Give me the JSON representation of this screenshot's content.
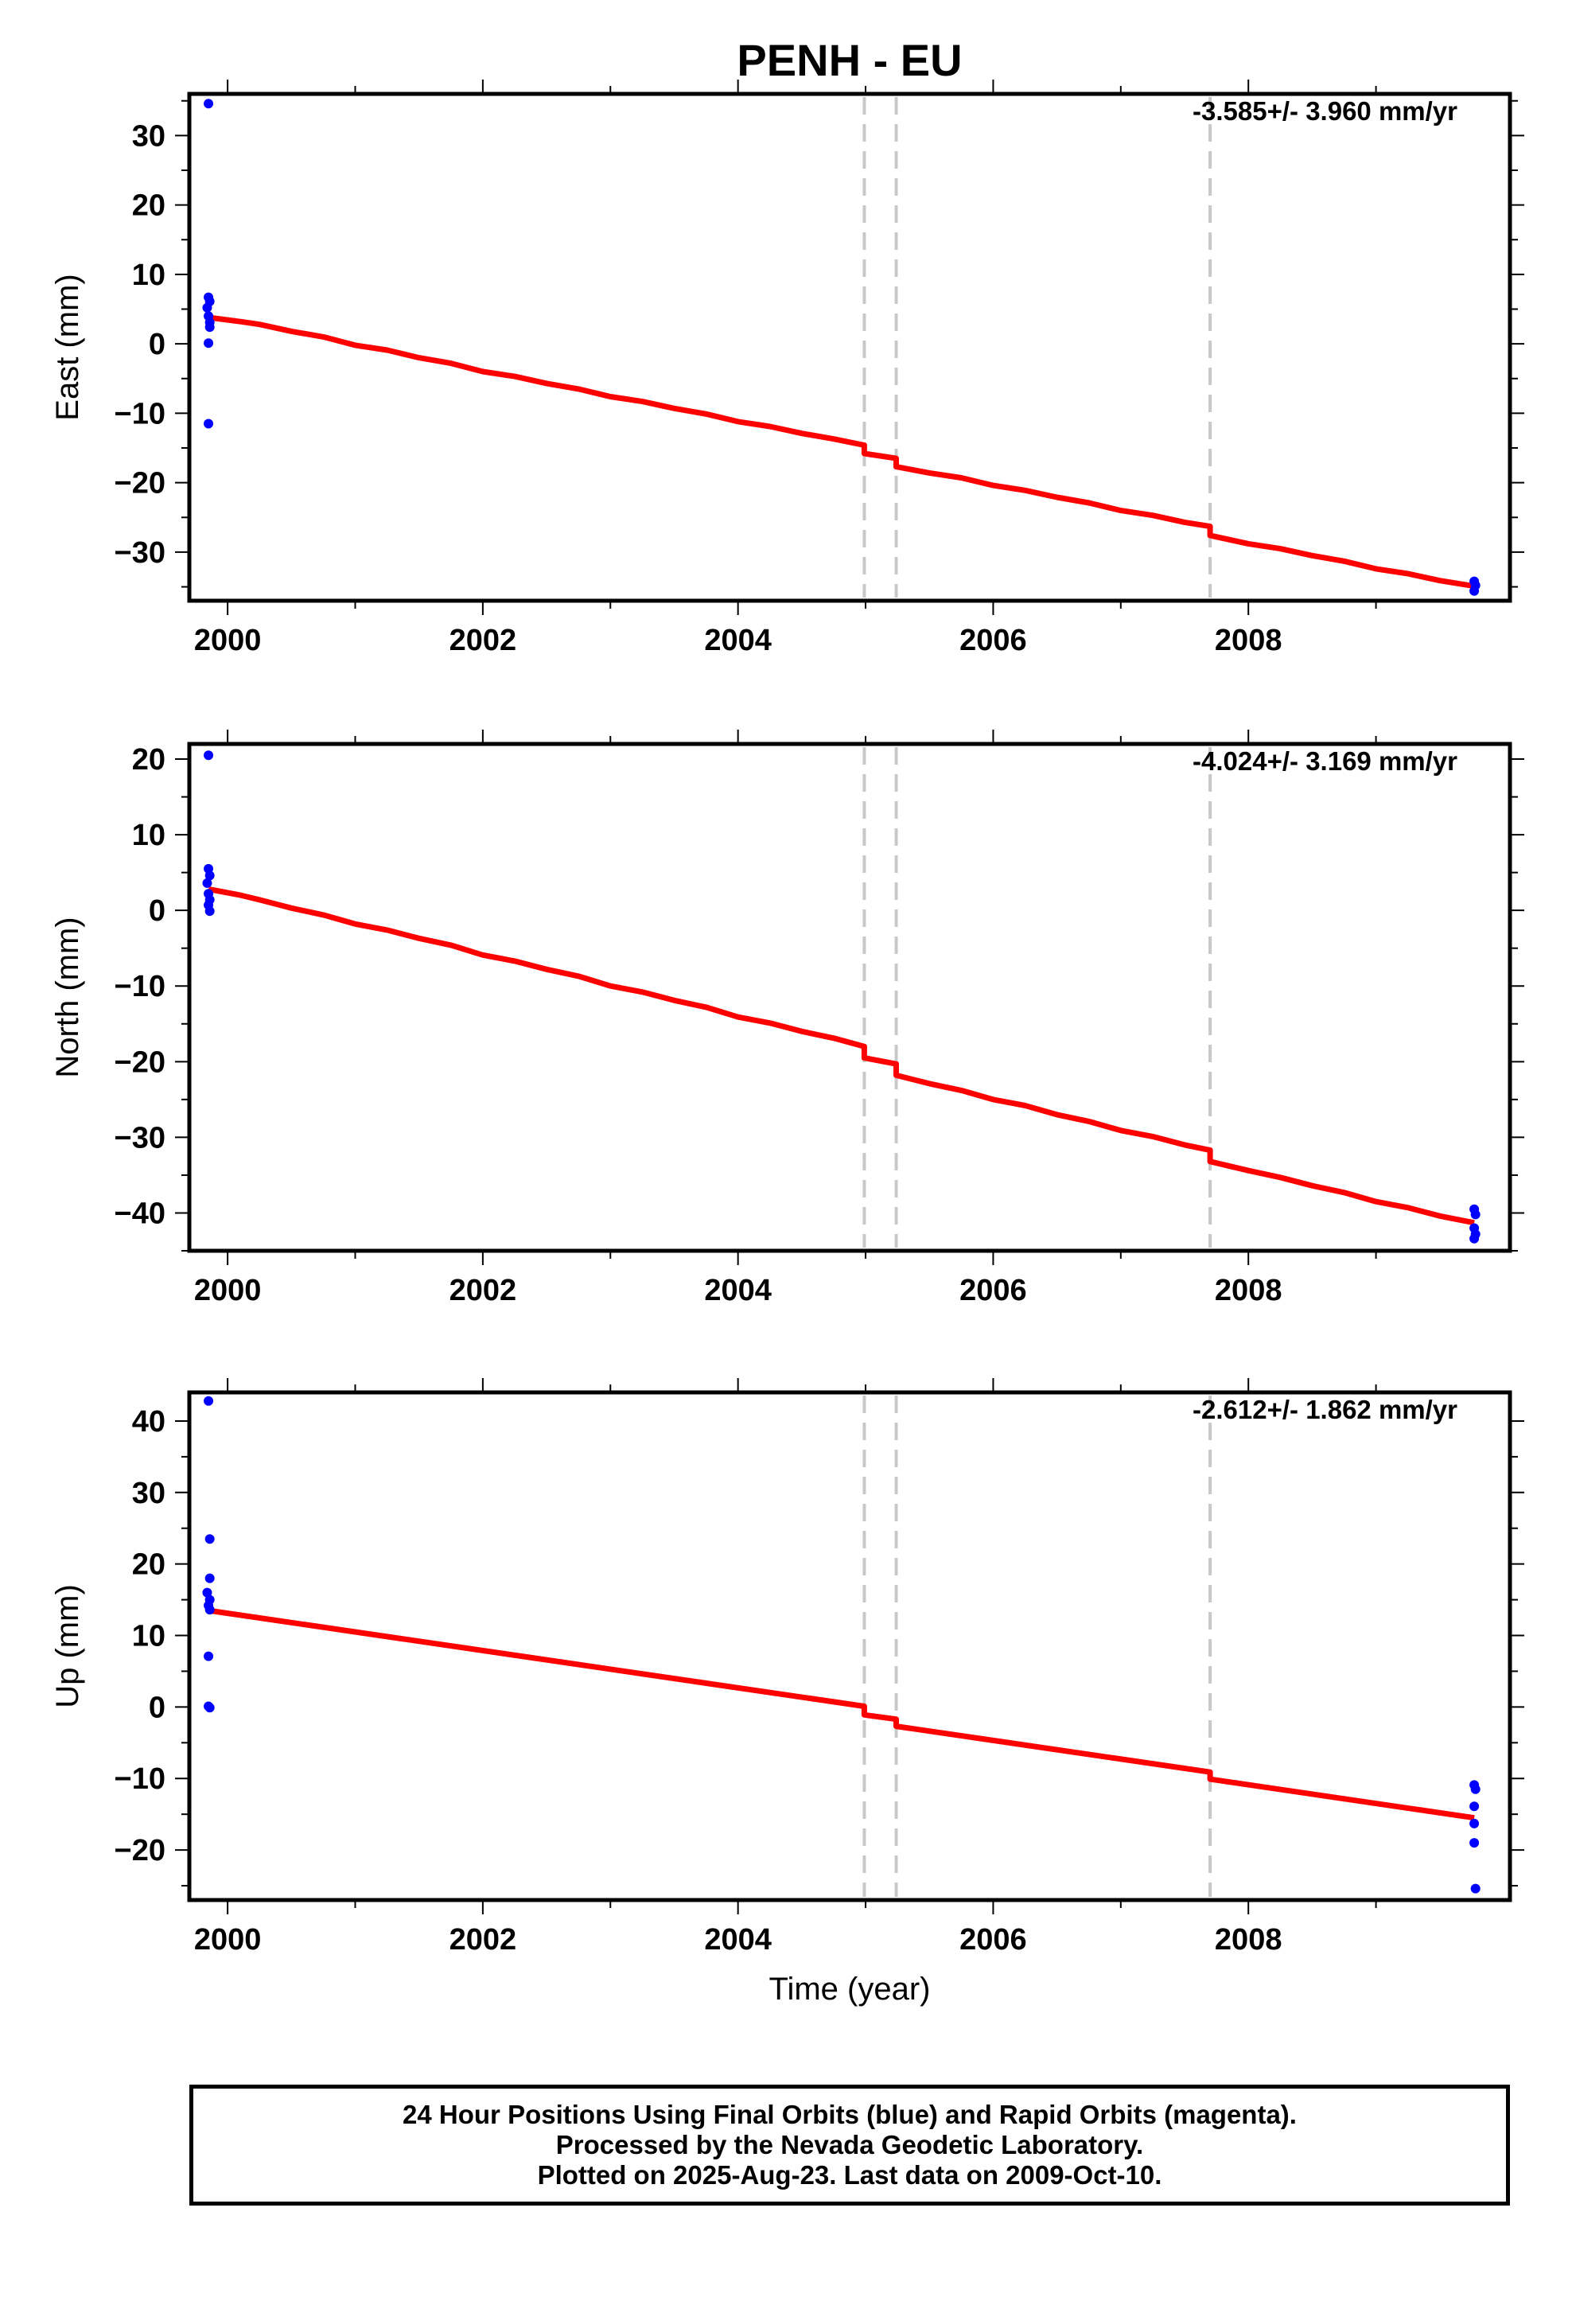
{
  "title": "PENH - EU",
  "colors": {
    "final_orbits": "#0000ff",
    "model": "#ff0000",
    "offset_lines": "#c8c8c8",
    "frame": "#000000"
  },
  "chart_data": [
    {
      "type": "scatter",
      "panel": "east",
      "ylabel": "East (mm)",
      "xlabel": "",
      "rate_label": "-3.585+/- 3.960 mm/yr",
      "xlim": [
        1999.7,
        2010.05
      ],
      "ylim": [
        -37,
        36
      ],
      "yticks": [
        -30,
        -20,
        -10,
        0,
        10,
        20,
        30
      ],
      "xticks": [
        2000,
        2002,
        2004,
        2006,
        2008
      ],
      "offset_epochs": [
        2004.99,
        2005.24,
        2007.7
      ],
      "points": [
        [
          1999.85,
          34.6
        ],
        [
          1999.85,
          6.7
        ],
        [
          1999.86,
          6.1
        ],
        [
          1999.84,
          5.2
        ],
        [
          1999.85,
          4.0
        ],
        [
          1999.86,
          3.1
        ],
        [
          1999.86,
          2.4
        ],
        [
          1999.85,
          0.1
        ],
        [
          1999.85,
          -11.5
        ],
        [
          2009.77,
          -34.2
        ],
        [
          2009.78,
          -34.8
        ],
        [
          2009.77,
          -35.6
        ]
      ],
      "model": [
        [
          1999.85,
          3.8
        ],
        [
          2000.1,
          3.2
        ],
        [
          2000.25,
          2.8
        ],
        [
          2000.5,
          1.8
        ],
        [
          2000.75,
          1.0
        ],
        [
          2001.0,
          -0.2
        ],
        [
          2001.25,
          -0.9
        ],
        [
          2001.5,
          -2.0
        ],
        [
          2001.75,
          -2.8
        ],
        [
          2002.0,
          -4.0
        ],
        [
          2002.25,
          -4.7
        ],
        [
          2002.5,
          -5.7
        ],
        [
          2002.75,
          -6.5
        ],
        [
          2003.0,
          -7.6
        ],
        [
          2003.25,
          -8.3
        ],
        [
          2003.5,
          -9.3
        ],
        [
          2003.75,
          -10.1
        ],
        [
          2004.0,
          -11.2
        ],
        [
          2004.25,
          -11.9
        ],
        [
          2004.5,
          -12.9
        ],
        [
          2004.75,
          -13.7
        ],
        [
          2004.99,
          -14.6
        ],
        [
          2004.99,
          -15.8
        ],
        [
          2005.24,
          -16.5
        ],
        [
          2005.24,
          -17.7
        ],
        [
          2005.5,
          -18.6
        ],
        [
          2005.75,
          -19.3
        ],
        [
          2006.0,
          -20.4
        ],
        [
          2006.25,
          -21.1
        ],
        [
          2006.5,
          -22.1
        ],
        [
          2006.75,
          -22.9
        ],
        [
          2007.0,
          -24.0
        ],
        [
          2007.25,
          -24.7
        ],
        [
          2007.5,
          -25.7
        ],
        [
          2007.7,
          -26.3
        ],
        [
          2007.7,
          -27.6
        ],
        [
          2008.0,
          -28.8
        ],
        [
          2008.25,
          -29.5
        ],
        [
          2008.5,
          -30.5
        ],
        [
          2008.75,
          -31.3
        ],
        [
          2009.0,
          -32.4
        ],
        [
          2009.25,
          -33.1
        ],
        [
          2009.5,
          -34.1
        ],
        [
          2009.77,
          -34.9
        ]
      ]
    },
    {
      "type": "scatter",
      "panel": "north",
      "ylabel": "North (mm)",
      "xlabel": "",
      "rate_label": "-4.024+/- 3.169 mm/yr",
      "xlim": [
        1999.7,
        2010.05
      ],
      "ylim": [
        -45,
        22
      ],
      "yticks": [
        -40,
        -30,
        -20,
        -10,
        0,
        10,
        20
      ],
      "xticks": [
        2000,
        2002,
        2004,
        2006,
        2008
      ],
      "offset_epochs": [
        2004.99,
        2005.24,
        2007.7
      ],
      "points": [
        [
          1999.85,
          20.5
        ],
        [
          1999.85,
          5.5
        ],
        [
          1999.86,
          4.6
        ],
        [
          1999.84,
          3.6
        ],
        [
          1999.85,
          2.2
        ],
        [
          1999.86,
          1.4
        ],
        [
          1999.85,
          0.7
        ],
        [
          1999.86,
          -0.1
        ],
        [
          2009.77,
          -39.5
        ],
        [
          2009.78,
          -40.2
        ],
        [
          2009.77,
          -42.0
        ],
        [
          2009.78,
          -42.8
        ],
        [
          2009.77,
          -43.4
        ]
      ],
      "model": [
        [
          1999.85,
          2.8
        ],
        [
          2000.1,
          2.0
        ],
        [
          2000.25,
          1.4
        ],
        [
          2000.5,
          0.3
        ],
        [
          2000.75,
          -0.6
        ],
        [
          2001.0,
          -1.8
        ],
        [
          2001.25,
          -2.6
        ],
        [
          2001.5,
          -3.7
        ],
        [
          2001.75,
          -4.6
        ],
        [
          2002.0,
          -5.9
        ],
        [
          2002.25,
          -6.7
        ],
        [
          2002.5,
          -7.8
        ],
        [
          2002.75,
          -8.7
        ],
        [
          2003.0,
          -10.0
        ],
        [
          2003.25,
          -10.8
        ],
        [
          2003.5,
          -11.9
        ],
        [
          2003.75,
          -12.8
        ],
        [
          2004.0,
          -14.1
        ],
        [
          2004.25,
          -14.9
        ],
        [
          2004.5,
          -16.0
        ],
        [
          2004.75,
          -16.9
        ],
        [
          2004.99,
          -18.0
        ],
        [
          2004.99,
          -19.5
        ],
        [
          2005.24,
          -20.3
        ],
        [
          2005.24,
          -21.8
        ],
        [
          2005.5,
          -22.9
        ],
        [
          2005.75,
          -23.8
        ],
        [
          2006.0,
          -25.0
        ],
        [
          2006.25,
          -25.8
        ],
        [
          2006.5,
          -27.0
        ],
        [
          2006.75,
          -27.9
        ],
        [
          2007.0,
          -29.1
        ],
        [
          2007.25,
          -29.9
        ],
        [
          2007.5,
          -31.0
        ],
        [
          2007.7,
          -31.7
        ],
        [
          2007.7,
          -33.2
        ],
        [
          2008.0,
          -34.4
        ],
        [
          2008.25,
          -35.3
        ],
        [
          2008.5,
          -36.4
        ],
        [
          2008.75,
          -37.3
        ],
        [
          2009.0,
          -38.5
        ],
        [
          2009.25,
          -39.3
        ],
        [
          2009.5,
          -40.4
        ],
        [
          2009.77,
          -41.3
        ]
      ]
    },
    {
      "type": "scatter",
      "panel": "up",
      "ylabel": "Up (mm)",
      "xlabel": "Time (year)",
      "rate_label": "-2.612+/- 1.862 mm/yr",
      "xlim": [
        1999.7,
        2010.05
      ],
      "ylim": [
        -27,
        44
      ],
      "yticks": [
        -20,
        -10,
        0,
        10,
        20,
        30,
        40
      ],
      "xticks": [
        2000,
        2002,
        2004,
        2006,
        2008
      ],
      "offset_epochs": [
        2004.99,
        2005.24,
        2007.7
      ],
      "points": [
        [
          1999.85,
          42.8
        ],
        [
          1999.86,
          23.5
        ],
        [
          1999.86,
          18.0
        ],
        [
          1999.84,
          16.0
        ],
        [
          1999.86,
          15.0
        ],
        [
          1999.85,
          14.2
        ],
        [
          1999.86,
          13.6
        ],
        [
          1999.85,
          7.1
        ],
        [
          1999.85,
          0.1
        ],
        [
          1999.86,
          -0.1
        ],
        [
          2009.77,
          -10.9
        ],
        [
          2009.78,
          -11.5
        ],
        [
          2009.77,
          -13.9
        ],
        [
          2009.77,
          -16.3
        ],
        [
          2009.77,
          -19.0
        ],
        [
          2009.78,
          -25.4
        ]
      ],
      "model": [
        [
          1999.85,
          13.5
        ],
        [
          2004.99,
          0.1
        ],
        [
          2004.99,
          -1.1
        ],
        [
          2005.24,
          -1.7
        ],
        [
          2005.24,
          -2.7
        ],
        [
          2007.7,
          -9.1
        ],
        [
          2007.7,
          -10.1
        ],
        [
          2009.77,
          -15.5
        ]
      ]
    }
  ],
  "footer": {
    "line1": "24 Hour Positions Using Final Orbits (blue) and Rapid Orbits (magenta).",
    "line2": "Processed by the Nevada Geodetic Laboratory.",
    "line3": "Plotted on 2025-Aug-23. Last data on 2009-Oct-10."
  }
}
